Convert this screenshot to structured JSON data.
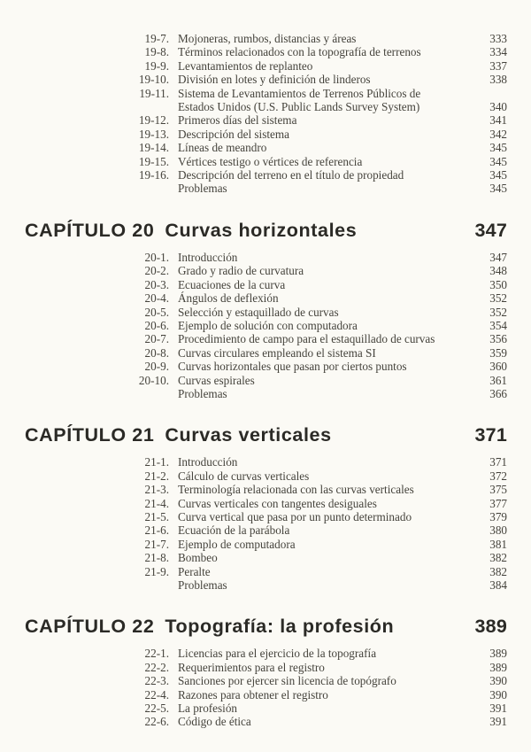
{
  "document": {
    "kind_label": "Índice de contenido",
    "colors": {
      "page_bg": "#fbfaf5",
      "body_text": "#45433c",
      "heading_text": "#2b2a26"
    }
  },
  "sections": [
    {
      "entries": [
        {
          "num": "19-7.",
          "lines": [
            "Mojoneras, rumbos, distancias y áreas"
          ],
          "page": "333"
        },
        {
          "num": "19-8.",
          "lines": [
            "Términos relacionados con la topografía de terrenos"
          ],
          "page": "334"
        },
        {
          "num": "19-9.",
          "lines": [
            "Levantamientos de replanteo"
          ],
          "page": "337"
        },
        {
          "num": "19-10.",
          "lines": [
            "División en lotes y definición de linderos"
          ],
          "page": "338"
        },
        {
          "num": "19-11.",
          "lines": [
            "Sistema de Levantamientos de Terrenos Públicos de",
            "Estados Unidos (U.S. Public Lands Survey System)"
          ],
          "page": "340"
        },
        {
          "num": "19-12.",
          "lines": [
            "Primeros días del sistema"
          ],
          "page": "341"
        },
        {
          "num": "19-13.",
          "lines": [
            "Descripción del sistema"
          ],
          "page": "342"
        },
        {
          "num": "19-14.",
          "lines": [
            "Líneas de meandro"
          ],
          "page": "345"
        },
        {
          "num": "19-15.",
          "lines": [
            "Vértices testigo o vértices de referencia"
          ],
          "page": "345"
        },
        {
          "num": "19-16.",
          "lines": [
            "Descripción del terreno en el título de propiedad"
          ],
          "page": "345"
        },
        {
          "num": "",
          "lines": [
            "Problemas"
          ],
          "page": "345"
        }
      ]
    },
    {
      "chapter": {
        "label": "CAPÍTULO 20",
        "title": "Curvas horizontales",
        "page": "347"
      },
      "entries": [
        {
          "num": "20-1.",
          "lines": [
            "Introducción"
          ],
          "page": "347"
        },
        {
          "num": "20-2.",
          "lines": [
            "Grado y radio de curvatura"
          ],
          "page": "348"
        },
        {
          "num": "20-3.",
          "lines": [
            "Ecuaciones de la curva"
          ],
          "page": "350"
        },
        {
          "num": "20-4.",
          "lines": [
            "Ángulos de deflexión"
          ],
          "page": "352"
        },
        {
          "num": "20-5.",
          "lines": [
            "Selección y estaquillado de curvas"
          ],
          "page": "352"
        },
        {
          "num": "20-6.",
          "lines": [
            "Ejemplo de solución con computadora"
          ],
          "page": "354"
        },
        {
          "num": "20-7.",
          "lines": [
            "Procedimiento de campo para el estaquillado de curvas"
          ],
          "page": "356"
        },
        {
          "num": "20-8.",
          "lines": [
            "Curvas circulares empleando el sistema SI"
          ],
          "page": "359"
        },
        {
          "num": "20-9.",
          "lines": [
            "Curvas horizontales que pasan por ciertos puntos"
          ],
          "page": "360"
        },
        {
          "num": "20-10.",
          "lines": [
            "Curvas espirales"
          ],
          "page": "361"
        },
        {
          "num": "",
          "lines": [
            "Problemas"
          ],
          "page": "366"
        }
      ]
    },
    {
      "chapter": {
        "label": "CAPÍTULO 21",
        "title": "Curvas verticales",
        "page": "371"
      },
      "entries": [
        {
          "num": "21-1.",
          "lines": [
            "Introducción"
          ],
          "page": "371"
        },
        {
          "num": "21-2.",
          "lines": [
            "Cálculo de curvas verticales"
          ],
          "page": "372"
        },
        {
          "num": "21-3.",
          "lines": [
            "Terminología relacionada con las curvas verticales"
          ],
          "page": "375"
        },
        {
          "num": "21-4.",
          "lines": [
            "Curvas verticales con tangentes desiguales"
          ],
          "page": "377"
        },
        {
          "num": "21-5.",
          "lines": [
            "Curva vertical que pasa por un punto determinado"
          ],
          "page": "379"
        },
        {
          "num": "21-6.",
          "lines": [
            "Ecuación de la parábola"
          ],
          "page": "380"
        },
        {
          "num": "21-7.",
          "lines": [
            "Ejemplo de computadora"
          ],
          "page": "381"
        },
        {
          "num": "21-8.",
          "lines": [
            "Bombeo"
          ],
          "page": "382"
        },
        {
          "num": "21-9.",
          "lines": [
            "Peralte"
          ],
          "page": "382"
        },
        {
          "num": "",
          "lines": [
            "Problemas"
          ],
          "page": "384"
        }
      ]
    },
    {
      "chapter": {
        "label": "CAPÍTULO 22",
        "title": "Topografía: la profesión",
        "page": "389"
      },
      "entries": [
        {
          "num": "22-1.",
          "lines": [
            "Licencias para el ejercicio de la topografía"
          ],
          "page": "389"
        },
        {
          "num": "22-2.",
          "lines": [
            "Requerimientos para el registro"
          ],
          "page": "389"
        },
        {
          "num": "22-3.",
          "lines": [
            "Sanciones por ejercer sin licencia de topógrafo"
          ],
          "page": "390"
        },
        {
          "num": "22-4.",
          "lines": [
            "Razones para obtener el registro"
          ],
          "page": "390"
        },
        {
          "num": "22-5.",
          "lines": [
            "La profesión"
          ],
          "page": "391"
        },
        {
          "num": "22-6.",
          "lines": [
            "Código de ética"
          ],
          "page": "391"
        }
      ]
    }
  ]
}
